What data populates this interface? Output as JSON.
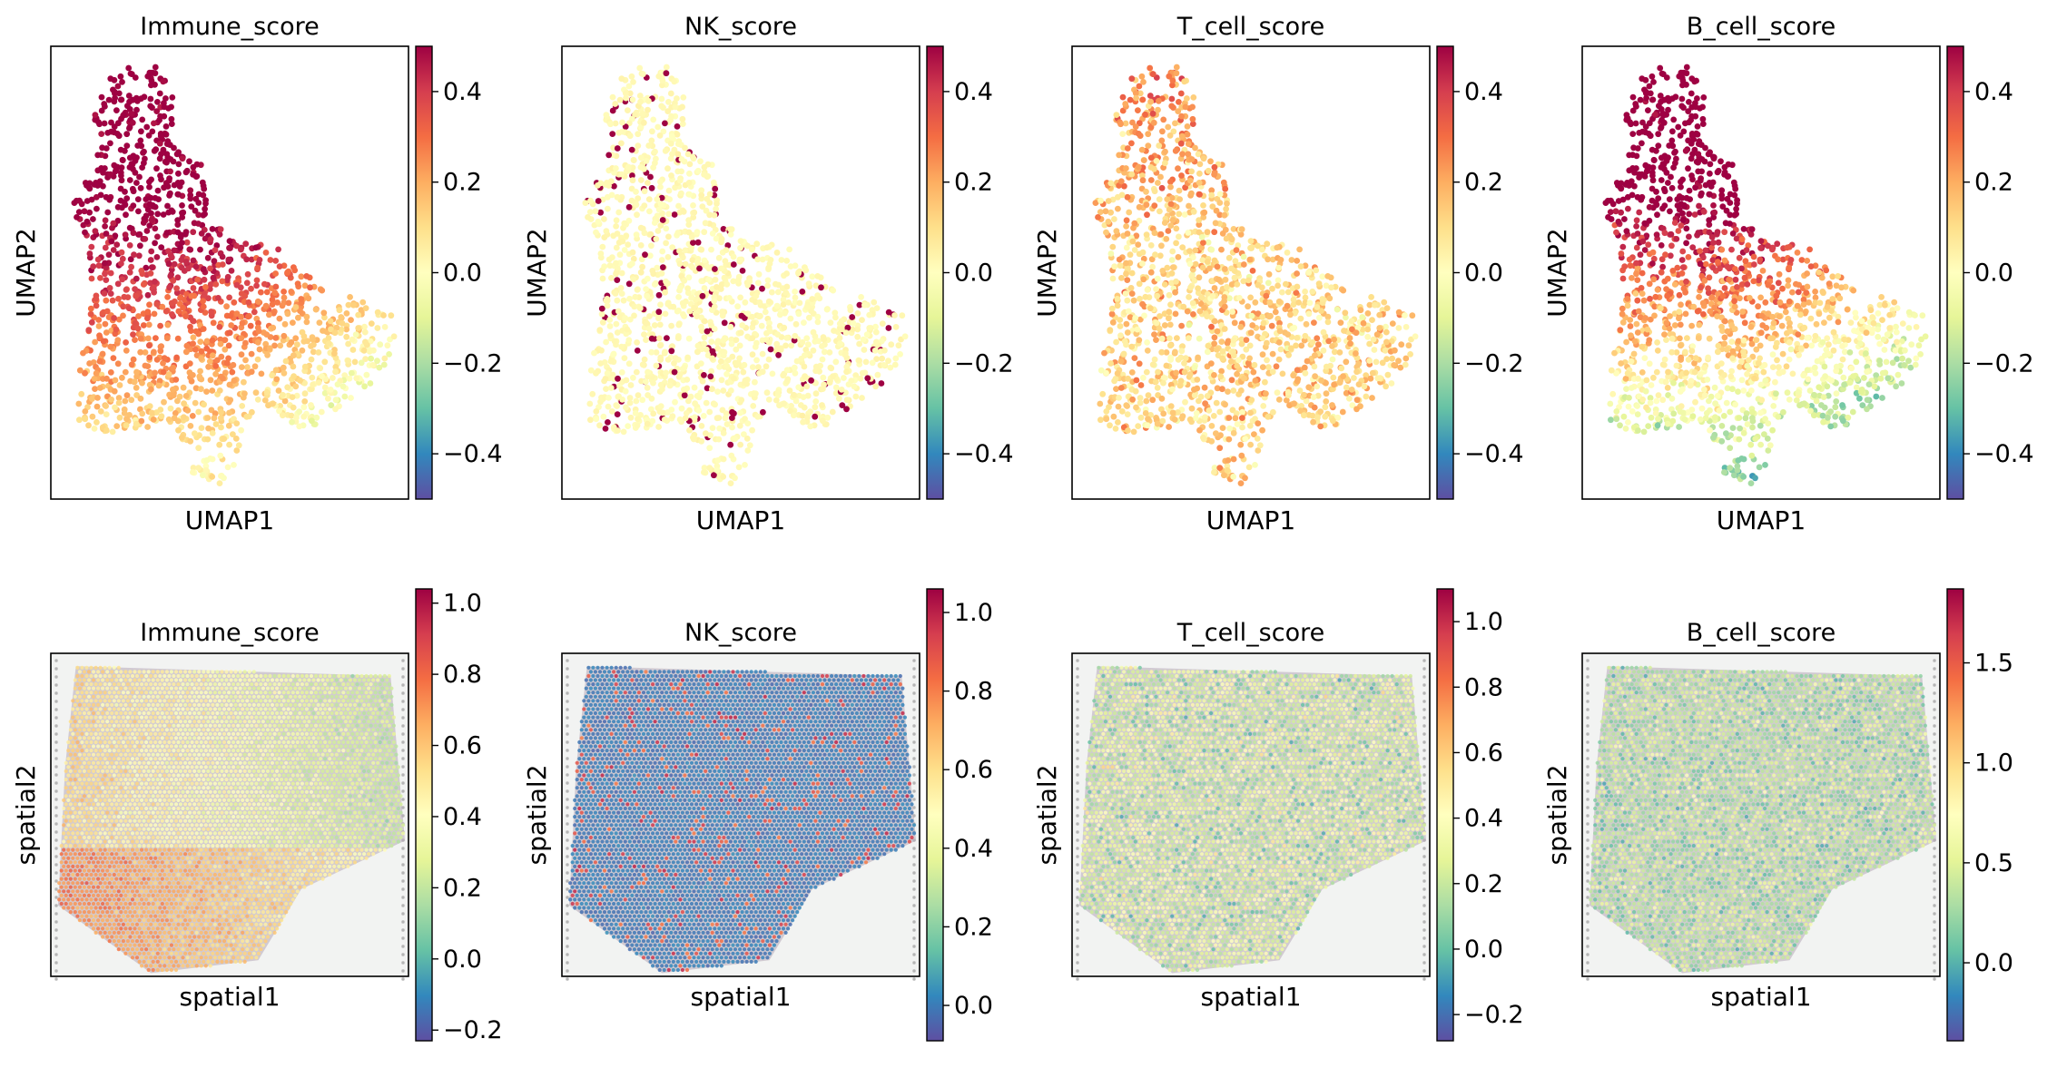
{
  "colormap": {
    "name": "Spectral_r",
    "stops": [
      "#5e4fa2",
      "#3288bd",
      "#66c2a5",
      "#abdda4",
      "#e6f598",
      "#ffffbf",
      "#fee08b",
      "#fdae61",
      "#f46d43",
      "#d53e4f",
      "#9e0142"
    ]
  },
  "chart_data": [
    {
      "type": "scatter",
      "embedding": "umap",
      "title": "Immune_score",
      "xlabel": "UMAP1",
      "ylabel": "UMAP2",
      "colorbar": {
        "range": [
          -0.5,
          0.5
        ],
        "ticks": [
          0.4,
          0.2,
          0.0,
          -0.2,
          -0.4
        ],
        "tick_labels": [
          "0.4",
          "0.2",
          "0.0",
          "−0.2",
          "−0.4"
        ]
      },
      "pattern": "immune"
    },
    {
      "type": "scatter",
      "embedding": "umap",
      "title": "NK_score",
      "xlabel": "UMAP1",
      "ylabel": "UMAP2",
      "colorbar": {
        "range": [
          -0.5,
          0.5
        ],
        "ticks": [
          0.4,
          0.2,
          0.0,
          -0.2,
          -0.4
        ],
        "tick_labels": [
          "0.4",
          "0.2",
          "0.0",
          "−0.2",
          "−0.4"
        ]
      },
      "pattern": "nk"
    },
    {
      "type": "scatter",
      "embedding": "umap",
      "title": "T_cell_score",
      "xlabel": "UMAP1",
      "ylabel": "UMAP2",
      "colorbar": {
        "range": [
          -0.5,
          0.5
        ],
        "ticks": [
          0.4,
          0.2,
          0.0,
          -0.2,
          -0.4
        ],
        "tick_labels": [
          "0.4",
          "0.2",
          "0.0",
          "−0.2",
          "−0.4"
        ]
      },
      "pattern": "tcell"
    },
    {
      "type": "scatter",
      "embedding": "umap",
      "title": "B_cell_score",
      "xlabel": "UMAP1",
      "ylabel": "UMAP2",
      "colorbar": {
        "range": [
          -0.5,
          0.5
        ],
        "ticks": [
          0.4,
          0.2,
          0.0,
          -0.2,
          -0.4
        ],
        "tick_labels": [
          "0.4",
          "0.2",
          "0.0",
          "−0.2",
          "−0.4"
        ]
      },
      "pattern": "bcell"
    },
    {
      "type": "scatter",
      "embedding": "spatial",
      "title": "Immune_score",
      "xlabel": "spatial1",
      "ylabel": "spatial2",
      "colorbar": {
        "range": [
          -0.23,
          1.04
        ],
        "ticks": [
          1.0,
          0.8,
          0.6,
          0.4,
          0.2,
          0.0,
          -0.2
        ],
        "tick_labels": [
          "1.0",
          "0.8",
          "0.6",
          "0.4",
          "0.2",
          "0.0",
          "−0.2"
        ]
      },
      "pattern": "immune"
    },
    {
      "type": "scatter",
      "embedding": "spatial",
      "title": "NK_score",
      "xlabel": "spatial1",
      "ylabel": "spatial2",
      "colorbar": {
        "range": [
          -0.09,
          1.06
        ],
        "ticks": [
          1.0,
          0.8,
          0.6,
          0.4,
          0.2,
          0.0
        ],
        "tick_labels": [
          "1.0",
          "0.8",
          "0.6",
          "0.4",
          "0.2",
          "0.0"
        ]
      },
      "pattern": "nk"
    },
    {
      "type": "scatter",
      "embedding": "spatial",
      "title": "T_cell_score",
      "xlabel": "spatial1",
      "ylabel": "spatial2",
      "colorbar": {
        "range": [
          -0.28,
          1.1
        ],
        "ticks": [
          1.0,
          0.8,
          0.6,
          0.4,
          0.2,
          0.0,
          -0.2
        ],
        "tick_labels": [
          "1.0",
          "0.8",
          "0.6",
          "0.4",
          "0.2",
          "0.0",
          "−0.2"
        ]
      },
      "pattern": "tcell"
    },
    {
      "type": "scatter",
      "embedding": "spatial",
      "title": "B_cell_score",
      "xlabel": "spatial1",
      "ylabel": "spatial2",
      "colorbar": {
        "range": [
          -0.39,
          1.87
        ],
        "ticks": [
          1.5,
          1.0,
          0.5,
          0.0
        ],
        "tick_labels": [
          "1.5",
          "1.0",
          "0.5",
          "0.0"
        ]
      },
      "pattern": "bcell"
    }
  ]
}
